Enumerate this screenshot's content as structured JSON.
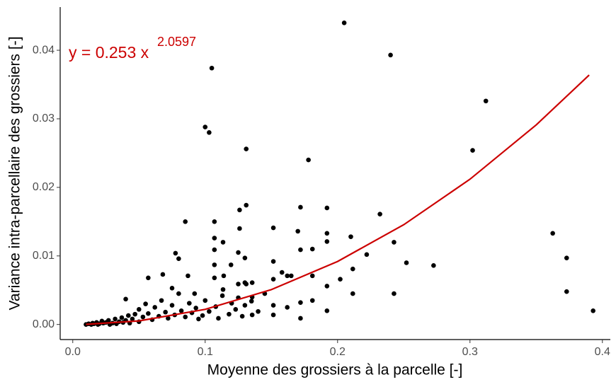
{
  "chart_data": {
    "type": "scatter",
    "x_label": "Moyenne des grossiers à la parcelle [-]",
    "y_label": "Variance intra-parcellaire des grossiers [-]",
    "annotations": [
      "y = 0.253 x",
      "2.0597"
    ],
    "annotation_color": "#cc0000",
    "xlim": [
      -0.0095,
      0.406
    ],
    "ylim": [
      -0.0022,
      0.0463
    ],
    "xticks": [
      {
        "value": 0,
        "label": "0.0"
      },
      0.1,
      0.2,
      0.3,
      0.4
    ],
    "yticks": [
      {
        "value": 0,
        "label": "0.00"
      },
      0.01,
      0.02,
      0.03,
      0.04
    ],
    "grid": false,
    "series": [
      {
        "type": "scatter",
        "color": "#000000",
        "x": [
          0.205,
          0.24,
          0.105,
          0.1,
          0.103,
          0.312,
          0.302,
          0.131,
          0.178,
          0.3625,
          0.373,
          0.373,
          0.393,
          0.2725,
          0.252,
          0.2426,
          0.2426,
          0.232,
          0.21,
          0.2115,
          0.2115,
          0.222,
          0.192,
          0.192,
          0.192,
          0.192,
          0.192,
          0.202,
          0.172,
          0.17,
          0.172,
          0.172,
          0.172,
          0.181,
          0.181,
          0.181,
          0.1515,
          0.1515,
          0.1515,
          0.1515,
          0.1515,
          0.158,
          0.162,
          0.165,
          0.162,
          0.1355,
          0.1355,
          0.1355,
          0.131,
          0.126,
          0.126,
          0.125,
          0.13,
          0.13,
          0.125,
          0.131,
          0.1195,
          0.114,
          0.107,
          0.107,
          0.107,
          0.107,
          0.107,
          0.1135,
          0.1135,
          0.085,
          0.0776,
          0.08,
          0.087,
          0.092,
          0.075,
          0.068,
          0.057,
          0.012,
          0.015,
          0.018,
          0.02,
          0.022,
          0.025,
          0.027,
          0.03,
          0.032,
          0.035,
          0.037,
          0.04,
          0.04,
          0.042,
          0.045,
          0.047,
          0.05,
          0.05,
          0.053,
          0.055,
          0.057,
          0.06,
          0.062,
          0.065,
          0.067,
          0.07,
          0.072,
          0.075,
          0.077,
          0.08,
          0.082,
          0.085,
          0.088,
          0.09,
          0.093,
          0.095,
          0.098,
          0.1,
          0.103,
          0.108,
          0.11,
          0.113,
          0.118,
          0.12,
          0.123,
          0.125,
          0.128,
          0.13,
          0.135,
          0.14,
          0.145,
          0.01,
          0.014,
          0.016,
          0.019,
          0.023,
          0.028,
          0.033,
          0.038,
          0.043
        ],
        "values": [
          0.044,
          0.0393,
          0.0374,
          0.0288,
          0.028,
          0.0326,
          0.0254,
          0.0256,
          0.024,
          0.0133,
          0.0097,
          0.0048,
          0.002,
          0.0086,
          0.009,
          0.012,
          0.0045,
          0.0161,
          0.0128,
          0.0081,
          0.0045,
          0.0102,
          0.017,
          0.0133,
          0.0121,
          0.0056,
          0.002,
          0.0066,
          0.0171,
          0.0136,
          0.0109,
          0.0032,
          0.0009,
          0.011,
          0.0071,
          0.0035,
          0.0141,
          0.0092,
          0.0066,
          0.0028,
          0.0014,
          0.0076,
          0.0071,
          0.0071,
          0.0025,
          0.0061,
          0.004,
          0.0014,
          0.0174,
          0.0167,
          0.014,
          0.0105,
          0.0097,
          0.0061,
          0.0059,
          0.0059,
          0.0087,
          0.0071,
          0.015,
          0.0126,
          0.0109,
          0.0087,
          0.0068,
          0.012,
          0.0051,
          0.015,
          0.0104,
          0.0096,
          0.0071,
          0.0045,
          0.0053,
          0.0073,
          0.0068,
          0.0001,
          0.0002,
          0.0003,
          0.0001,
          0.0005,
          0.0003,
          0.0006,
          0.0002,
          0.0008,
          0.0004,
          0.001,
          0.0006,
          0.0037,
          0.0013,
          0.0008,
          0.0015,
          0.0004,
          0.0022,
          0.0011,
          0.003,
          0.0016,
          0.0007,
          0.0025,
          0.0012,
          0.0035,
          0.0018,
          0.0009,
          0.0028,
          0.0014,
          0.0045,
          0.002,
          0.0011,
          0.0031,
          0.0017,
          0.0024,
          0.0008,
          0.0013,
          0.0035,
          0.0019,
          0.0026,
          0.0009,
          0.0042,
          0.0015,
          0.0031,
          0.0022,
          0.0039,
          0.0012,
          0.0028,
          0.0034,
          0.0019,
          0.0045,
          0,
          0,
          0.0001,
          0,
          0.0002,
          0,
          0.0001,
          0.0003,
          0.0002
        ]
      },
      {
        "type": "line",
        "color": "#cc0000",
        "x": [
          0.01,
          0.05,
          0.1,
          0.15,
          0.2,
          0.25,
          0.3,
          0.35,
          0.39
        ],
        "values": [
          2e-05,
          0.000529,
          0.002205,
          0.005083,
          0.009193,
          0.014557,
          0.02119,
          0.02911,
          0.03638
        ]
      }
    ]
  }
}
